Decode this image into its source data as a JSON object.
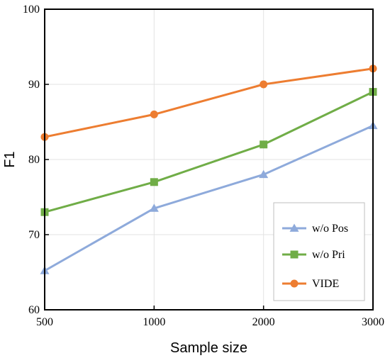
{
  "chart_data": {
    "type": "line",
    "title": "",
    "xlabel": "Sample size",
    "ylabel": "F1",
    "x": [
      "500",
      "1000",
      "2000",
      "3000"
    ],
    "yticks": [
      60,
      70,
      80,
      90,
      100
    ],
    "ylim": [
      60,
      100
    ],
    "grid": true,
    "legend_position": "bottom-right",
    "series": [
      {
        "name": "w/o Pos",
        "values": [
          65.2,
          73.5,
          78.0,
          84.5
        ],
        "color": "#8eaadb",
        "marker": "triangle"
      },
      {
        "name": "w/o Pri",
        "values": [
          73.0,
          77.0,
          82.0,
          89.0
        ],
        "color": "#70ad47",
        "marker": "square"
      },
      {
        "name": "VIDE",
        "values": [
          83.0,
          86.0,
          90.0,
          92.1
        ],
        "color": "#ed7d31",
        "marker": "circle"
      }
    ]
  }
}
